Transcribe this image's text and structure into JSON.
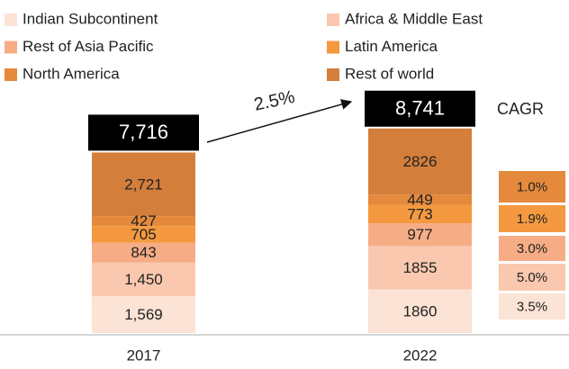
{
  "chart_data": {
    "type": "bar",
    "categories": [
      "2017",
      "2022"
    ],
    "series": [
      {
        "name": "Indian Subcontinent",
        "color": "#fbe3d5",
        "values": [
          1569,
          1860
        ],
        "value_labels": [
          "1,569",
          "1860"
        ]
      },
      {
        "name": "Africa & Middle East",
        "color": "#f9c8ae",
        "values": [
          1450,
          1855
        ],
        "value_labels": [
          "1,450",
          "1855"
        ]
      },
      {
        "name": "Rest of Asia Pacific",
        "color": "#f6ad86",
        "values": [
          843,
          977
        ]
      },
      {
        "name": "Latin America",
        "color": "#f4993f",
        "values": [
          705,
          773
        ]
      },
      {
        "name": "North America",
        "color": "#e58a3c",
        "values": [
          427,
          449
        ]
      },
      {
        "name": "Rest of world",
        "color": "#d47e3c",
        "values": [
          2721,
          2826
        ],
        "value_labels": [
          "2,721",
          "2826"
        ]
      }
    ],
    "totals": {
      "values": [
        7716,
        8741
      ],
      "value_labels": [
        "7,716",
        "8,741"
      ]
    },
    "growth_annotation": "2.5%",
    "cagr_label": "CAGR",
    "cagr": {
      "values": [
        3.5,
        5.0,
        3.0,
        1.9,
        1.0
      ],
      "value_labels": [
        "3.5%",
        "5.0%",
        "3.0%",
        "1.9%",
        "1.0%"
      ]
    }
  }
}
